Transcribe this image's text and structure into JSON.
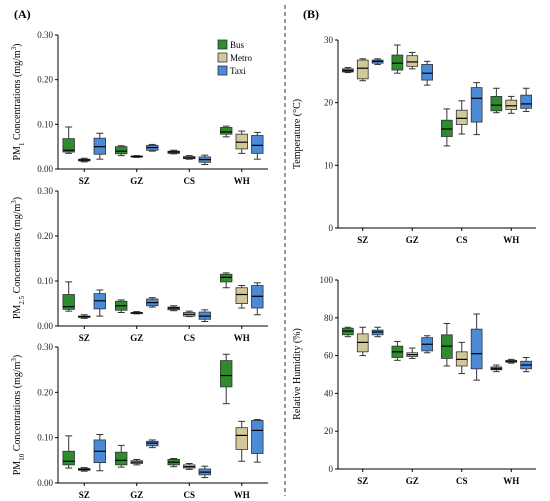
{
  "panel_labels": {
    "A": "(A)",
    "B": "(B)"
  },
  "colors": {
    "Bus": "#2e8b2e",
    "Metro": "#d2c89a",
    "Taxi": "#4a8ad6"
  },
  "legend": [
    "Bus",
    "Metro",
    "Taxi"
  ],
  "chart_data": [
    {
      "type": "box",
      "panel": "A",
      "ylabel_prefix": "PM",
      "ylabel_sub": "1",
      "ylabel_rest": " Concentrations (mg/m",
      "ylabel_sup": "3",
      "ylabel_end": ")",
      "ylim": [
        0,
        0.3
      ],
      "yticks": [
        "0.00",
        "0.10",
        "0.20",
        "0.30"
      ],
      "categories": [
        "SZ",
        "GZ",
        "CS",
        "WH"
      ],
      "series": [
        {
          "name": "Bus",
          "boxes": [
            {
              "min": 0.035,
              "q1": 0.038,
              "median": 0.042,
              "q3": 0.068,
              "max": 0.094
            },
            {
              "min": 0.03,
              "q1": 0.034,
              "median": 0.04,
              "q3": 0.05,
              "max": 0.052
            },
            {
              "min": 0.034,
              "q1": 0.035,
              "median": 0.038,
              "q3": 0.04,
              "max": 0.042
            },
            {
              "min": 0.072,
              "q1": 0.078,
              "median": 0.083,
              "q3": 0.093,
              "max": 0.096
            }
          ]
        },
        {
          "name": "Metro",
          "boxes": [
            {
              "min": 0.016,
              "q1": 0.018,
              "median": 0.02,
              "q3": 0.022,
              "max": 0.024
            },
            {
              "min": 0.026,
              "q1": 0.027,
              "median": 0.028,
              "q3": 0.029,
              "max": 0.03
            },
            {
              "min": 0.022,
              "q1": 0.023,
              "median": 0.025,
              "q3": 0.028,
              "max": 0.03
            },
            {
              "min": 0.035,
              "q1": 0.045,
              "median": 0.06,
              "q3": 0.078,
              "max": 0.085
            }
          ]
        },
        {
          "name": "Taxi",
          "boxes": [
            {
              "min": 0.022,
              "q1": 0.033,
              "median": 0.05,
              "q3": 0.069,
              "max": 0.08
            },
            {
              "min": 0.04,
              "q1": 0.042,
              "median": 0.048,
              "q3": 0.053,
              "max": 0.055
            },
            {
              "min": 0.01,
              "q1": 0.015,
              "median": 0.021,
              "q3": 0.027,
              "max": 0.031
            },
            {
              "min": 0.022,
              "q1": 0.035,
              "median": 0.053,
              "q3": 0.075,
              "max": 0.082
            }
          ]
        }
      ]
    },
    {
      "type": "box",
      "panel": "A",
      "ylabel_prefix": "PM",
      "ylabel_sub": "2.5",
      "ylabel_rest": " Concentrations (mg/m",
      "ylabel_sup": "3",
      "ylabel_end": ")",
      "ylim": [
        0,
        0.3
      ],
      "yticks": [
        "0.00",
        "0.10",
        "0.20",
        "0.30"
      ],
      "categories": [
        "SZ",
        "GZ",
        "CS",
        "WH"
      ],
      "series": [
        {
          "name": "Bus",
          "boxes": [
            {
              "min": 0.033,
              "q1": 0.037,
              "median": 0.043,
              "q3": 0.07,
              "max": 0.098
            },
            {
              "min": 0.03,
              "q1": 0.035,
              "median": 0.045,
              "q3": 0.055,
              "max": 0.058
            },
            {
              "min": 0.034,
              "q1": 0.036,
              "median": 0.04,
              "q3": 0.042,
              "max": 0.045
            },
            {
              "min": 0.085,
              "q1": 0.098,
              "median": 0.108,
              "q3": 0.115,
              "max": 0.118
            }
          ]
        },
        {
          "name": "Metro",
          "boxes": [
            {
              "min": 0.017,
              "q1": 0.019,
              "median": 0.021,
              "q3": 0.022,
              "max": 0.025
            },
            {
              "min": 0.027,
              "q1": 0.028,
              "median": 0.029,
              "q3": 0.03,
              "max": 0.032
            },
            {
              "min": 0.021,
              "q1": 0.022,
              "median": 0.026,
              "q3": 0.03,
              "max": 0.033
            },
            {
              "min": 0.04,
              "q1": 0.05,
              "median": 0.07,
              "q3": 0.085,
              "max": 0.09
            }
          ]
        },
        {
          "name": "Taxi",
          "boxes": [
            {
              "min": 0.022,
              "q1": 0.038,
              "median": 0.056,
              "q3": 0.072,
              "max": 0.08
            },
            {
              "min": 0.042,
              "q1": 0.045,
              "median": 0.052,
              "q3": 0.06,
              "max": 0.063
            },
            {
              "min": 0.01,
              "q1": 0.015,
              "median": 0.022,
              "q3": 0.031,
              "max": 0.036
            },
            {
              "min": 0.025,
              "q1": 0.04,
              "median": 0.066,
              "q3": 0.09,
              "max": 0.096
            }
          ]
        }
      ]
    },
    {
      "type": "box",
      "panel": "A",
      "ylabel_prefix": "PM",
      "ylabel_sub": "10",
      "ylabel_rest": " Concentrations (mg/m",
      "ylabel_sup": "3",
      "ylabel_end": ")",
      "ylim": [
        0,
        0.3
      ],
      "yticks": [
        "0.00",
        "0.10",
        "0.20",
        "0.30"
      ],
      "categories": [
        "SZ",
        "GZ",
        "CS",
        "WH"
      ],
      "series": [
        {
          "name": "Bus",
          "boxes": [
            {
              "min": 0.033,
              "q1": 0.04,
              "median": 0.048,
              "q3": 0.07,
              "max": 0.104
            },
            {
              "min": 0.035,
              "q1": 0.04,
              "median": 0.05,
              "q3": 0.068,
              "max": 0.083
            },
            {
              "min": 0.036,
              "q1": 0.04,
              "median": 0.046,
              "q3": 0.052,
              "max": 0.054
            },
            {
              "min": 0.175,
              "q1": 0.212,
              "median": 0.237,
              "q3": 0.27,
              "max": 0.284
            }
          ]
        },
        {
          "name": "Metro",
          "boxes": [
            {
              "min": 0.026,
              "q1": 0.028,
              "median": 0.03,
              "q3": 0.032,
              "max": 0.034
            },
            {
              "min": 0.04,
              "q1": 0.043,
              "median": 0.046,
              "q3": 0.049,
              "max": 0.052
            },
            {
              "min": 0.03,
              "q1": 0.033,
              "median": 0.036,
              "q3": 0.04,
              "max": 0.043
            },
            {
              "min": 0.048,
              "q1": 0.074,
              "median": 0.105,
              "q3": 0.122,
              "max": 0.136
            }
          ]
        },
        {
          "name": "Taxi",
          "boxes": [
            {
              "min": 0.027,
              "q1": 0.045,
              "median": 0.07,
              "q3": 0.095,
              "max": 0.107
            },
            {
              "min": 0.078,
              "q1": 0.082,
              "median": 0.088,
              "q3": 0.092,
              "max": 0.095
            },
            {
              "min": 0.012,
              "q1": 0.018,
              "median": 0.024,
              "q3": 0.031,
              "max": 0.037
            },
            {
              "min": 0.046,
              "q1": 0.065,
              "median": 0.116,
              "q3": 0.138,
              "max": 0.14
            }
          ]
        }
      ]
    },
    {
      "type": "box",
      "panel": "B",
      "ylabel_prefix": "Temperature (°C)",
      "ylabel_sub": "",
      "ylabel_rest": "",
      "ylabel_sup": "",
      "ylabel_end": "",
      "ylim": [
        0,
        30
      ],
      "yticks": [
        "0",
        "10",
        "20",
        "30"
      ],
      "categories": [
        "SZ",
        "GZ",
        "CS",
        "WH"
      ],
      "series": [
        {
          "name": "Bus",
          "boxes": [
            {
              "min": 24.8,
              "q1": 24.9,
              "median": 25.1,
              "q3": 25.4,
              "max": 25.6
            },
            {
              "min": 24.7,
              "q1": 25.2,
              "median": 26.3,
              "q3": 27.6,
              "max": 29.2
            },
            {
              "min": 13.1,
              "q1": 14.6,
              "median": 15.8,
              "q3": 17.2,
              "max": 19.0
            },
            {
              "min": 18.4,
              "q1": 18.7,
              "median": 19.6,
              "q3": 21.0,
              "max": 22.3
            }
          ]
        },
        {
          "name": "Metro",
          "boxes": [
            {
              "min": 23.5,
              "q1": 23.8,
              "median": 25.5,
              "q3": 26.8,
              "max": 27.0
            },
            {
              "min": 25.4,
              "q1": 25.8,
              "median": 26.5,
              "q3": 27.5,
              "max": 28.0
            },
            {
              "min": 15.0,
              "q1": 16.5,
              "median": 17.5,
              "q3": 18.8,
              "max": 20.3
            },
            {
              "min": 18.3,
              "q1": 18.9,
              "median": 19.5,
              "q3": 20.4,
              "max": 21.0
            }
          ]
        },
        {
          "name": "Taxi",
          "boxes": [
            {
              "min": 26.1,
              "q1": 26.3,
              "median": 26.6,
              "q3": 26.8,
              "max": 27.0
            },
            {
              "min": 22.8,
              "q1": 23.6,
              "median": 24.7,
              "q3": 26.1,
              "max": 26.6
            },
            {
              "min": 14.9,
              "q1": 16.9,
              "median": 20.7,
              "q3": 22.4,
              "max": 23.2
            },
            {
              "min": 18.6,
              "q1": 19.1,
              "median": 19.8,
              "q3": 21.2,
              "max": 22.3
            }
          ]
        }
      ]
    },
    {
      "type": "box",
      "panel": "B",
      "ylabel_prefix": "Relative Humidity (%)",
      "ylabel_sub": "",
      "ylabel_rest": "",
      "ylabel_sup": "",
      "ylabel_end": "",
      "ylim": [
        0,
        100
      ],
      "yticks": [
        "0",
        "20",
        "40",
        "60",
        "80",
        "100"
      ],
      "categories": [
        "SZ",
        "GZ",
        "CS",
        "WH"
      ],
      "series": [
        {
          "name": "Bus",
          "boxes": [
            {
              "min": 70.0,
              "q1": 71.0,
              "median": 73.0,
              "q3": 74.5,
              "max": 75.0
            },
            {
              "min": 57.5,
              "q1": 59.0,
              "median": 62.0,
              "q3": 65.0,
              "max": 67.5
            },
            {
              "min": 54.5,
              "q1": 58.5,
              "median": 65.0,
              "q3": 71.0,
              "max": 77.0
            },
            {
              "min": 51.5,
              "q1": 52.5,
              "median": 53.0,
              "q3": 54.0,
              "max": 55.0
            }
          ]
        },
        {
          "name": "Metro",
          "boxes": [
            {
              "min": 60.0,
              "q1": 62.0,
              "median": 67.0,
              "q3": 71.5,
              "max": 75.0
            },
            {
              "min": 58.5,
              "q1": 59.5,
              "median": 60.5,
              "q3": 61.5,
              "max": 64.0
            },
            {
              "min": 50.5,
              "q1": 54.5,
              "median": 58.0,
              "q3": 62.0,
              "max": 67.0
            },
            {
              "min": 56.0,
              "q1": 56.5,
              "median": 57.0,
              "q3": 57.5,
              "max": 58.0
            }
          ]
        },
        {
          "name": "Taxi",
          "boxes": [
            {
              "min": 70.0,
              "q1": 71.0,
              "median": 72.5,
              "q3": 73.5,
              "max": 75.0
            },
            {
              "min": 61.5,
              "q1": 62.5,
              "median": 66.0,
              "q3": 69.5,
              "max": 70.5
            },
            {
              "min": 47.0,
              "q1": 53.0,
              "median": 61.0,
              "q3": 74.0,
              "max": 82.0
            },
            {
              "min": 51.5,
              "q1": 53.0,
              "median": 55.0,
              "q3": 57.0,
              "max": 59.0
            }
          ]
        }
      ]
    }
  ]
}
